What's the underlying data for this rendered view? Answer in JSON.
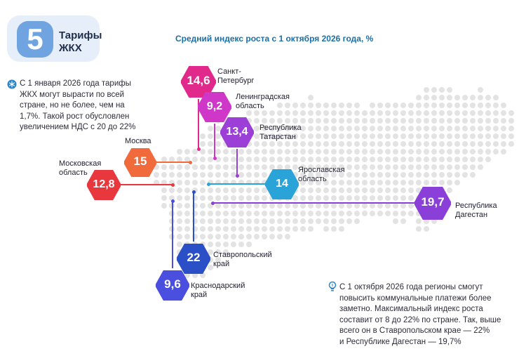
{
  "header": {
    "number": "5",
    "title": "Тарифы\nЖКХ"
  },
  "chart_title": "Средний индекс роста с 1 октября 2026 года, %",
  "notes": {
    "left": "С 1 января 2026 года тарифы\nЖКХ могут вырасти по всей\nстране, но не более, чем на\n1,7%. Такой рост обусловлен\nувеличением НДС с 20 до 22%",
    "right": "С 1 октября 2026 года регионы смогут\nповысить коммунальные платежи более\nзаметно. Максимальный индекс роста\nсоставит от 8 до 22% по стране. Так, выше\nвсего он в Ставропольском крае — 22%\nи Республике Дагестан — 19,7%",
    "left_icon": "snowflake-icon",
    "right_icon": "lightbulb-icon"
  },
  "regions": [
    {
      "key": "spb",
      "name": "Санкт-\nПетербург",
      "value": "14,6",
      "color": "#e0298a"
    },
    {
      "key": "lo",
      "name": "Ленинградская\nобласть",
      "value": "9,2",
      "color": "#cf37c9"
    },
    {
      "key": "tat",
      "name": "Республика\nТатарстан",
      "value": "13,4",
      "color": "#9b3fd6"
    },
    {
      "key": "msk",
      "name": "Москва",
      "value": "15",
      "color": "#f06a3c"
    },
    {
      "key": "mo",
      "name": "Московская\nобласть",
      "value": "12,8",
      "color": "#e8383d"
    },
    {
      "key": "yar",
      "name": "Ярославская\nобласть",
      "value": "14",
      "color": "#2aa3d8"
    },
    {
      "key": "dag",
      "name": "Республика\nДагестан",
      "value": "19,7",
      "color": "#8a3fd8"
    },
    {
      "key": "stav",
      "name": "Ставропольский\nкрай",
      "value": "22",
      "color": "#2b4fc7"
    },
    {
      "key": "kras",
      "name": "Краснодарский\nкрай",
      "value": "9,6",
      "color": "#4a4fe0"
    }
  ],
  "colors": {
    "badge_bg": "#e6eef9",
    "badge_num": "#6fa4e0",
    "title": "#1a6fa8",
    "map_dots": "#e3e3e3"
  }
}
